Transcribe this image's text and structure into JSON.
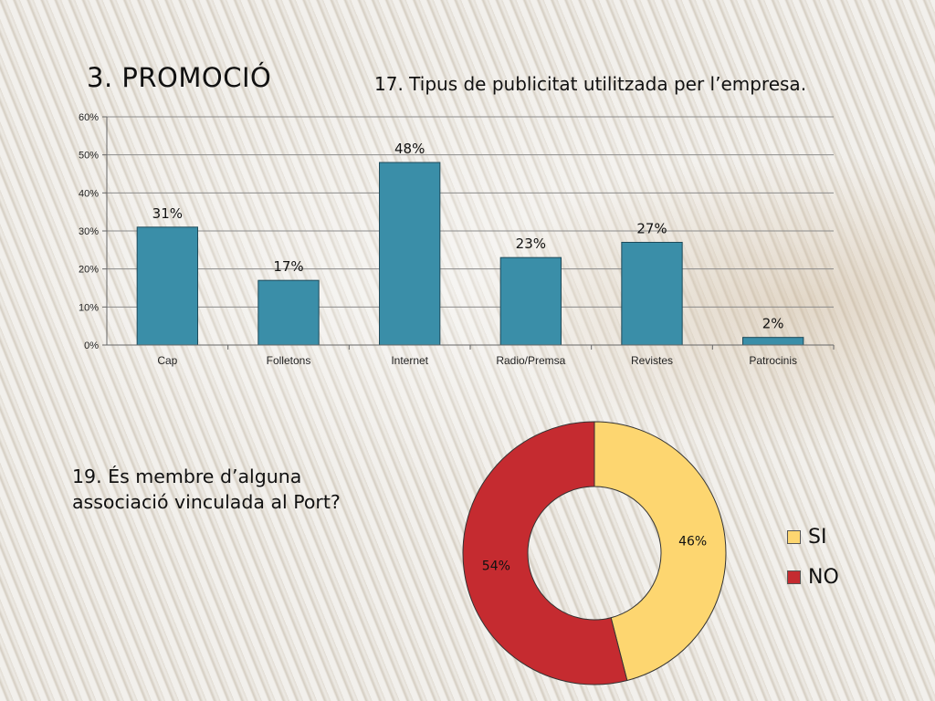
{
  "slide": {
    "title": "3. PROMOCIÓ"
  },
  "colors": {
    "bar": "#3a8ea8",
    "si": "#fdd670",
    "no": "#c52b30"
  },
  "chart_data": [
    {
      "type": "bar",
      "title": "17. Tipus de publicitat utilitzada per l’empresa.",
      "categories": [
        "Cap",
        "Folletons",
        "Internet",
        "Radio/Premsa",
        "Revistes",
        "Patrocinis"
      ],
      "values": [
        31,
        17,
        48,
        23,
        27,
        2
      ],
      "data_labels": [
        "31%",
        "17%",
        "48%",
        "23%",
        "27%",
        "2%"
      ],
      "ylim": [
        0,
        60
      ],
      "yticks": [
        "0%",
        "10%",
        "20%",
        "30%",
        "40%",
        "50%",
        "60%"
      ],
      "grid": true,
      "legend": "none"
    },
    {
      "type": "pie",
      "donut": true,
      "title": "19. És membre d’alguna associació vinculada al Port?",
      "labels": [
        "SI",
        "NO"
      ],
      "values": [
        46,
        54
      ],
      "data_labels": [
        "46%",
        "54%"
      ],
      "legend": "right"
    }
  ]
}
